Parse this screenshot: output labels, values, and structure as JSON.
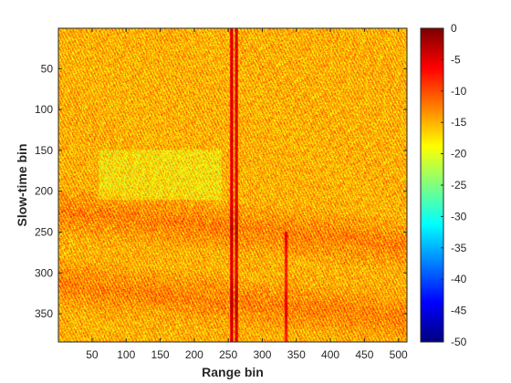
{
  "chart_data": {
    "type": "heatmap",
    "title": "",
    "xlabel": "Range bin",
    "ylabel": "Slow-time bin",
    "xlim": [
      1,
      512
    ],
    "ylim": [
      1,
      384
    ],
    "y_reversed": true,
    "x_ticks": [
      50,
      100,
      150,
      200,
      250,
      300,
      350,
      400,
      450,
      500
    ],
    "y_ticks": [
      50,
      100,
      150,
      200,
      250,
      300,
      350
    ],
    "colorbar": {
      "colormap": "jet",
      "clim": [
        -50,
        0
      ],
      "ticks": [
        0,
        -5,
        -10,
        -15,
        -20,
        -25,
        -30,
        -35,
        -40,
        -45,
        -50
      ]
    },
    "typical_level_db": -15,
    "features": [
      {
        "kind": "vertical-line",
        "range_bin": 255,
        "slow_time": [
          1,
          384
        ],
        "level_db": -3
      },
      {
        "kind": "vertical-line",
        "range_bin": 262,
        "slow_time": [
          1,
          384
        ],
        "level_db": -4
      },
      {
        "kind": "vertical-streak",
        "range_bin": 335,
        "slow_time": [
          250,
          384
        ],
        "level_db": -6
      },
      {
        "kind": "band",
        "slow_time": [
          210,
          280
        ],
        "level_db": -9
      },
      {
        "kind": "band",
        "slow_time": [
          300,
          370
        ],
        "level_db": -9
      },
      {
        "kind": "lighter-region",
        "range_bin": [
          60,
          240
        ],
        "slow_time": [
          150,
          210
        ],
        "level_db": -19
      }
    ]
  }
}
